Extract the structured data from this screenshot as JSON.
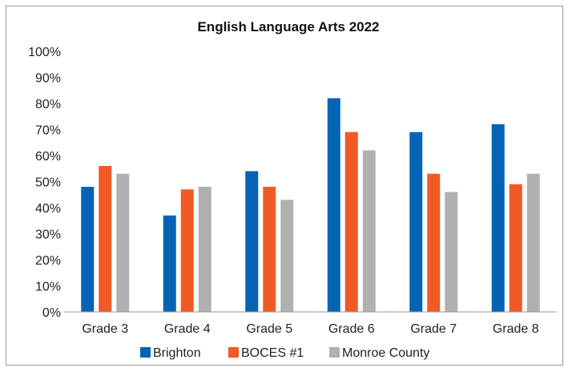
{
  "chart_data": {
    "type": "bar",
    "title": "English Language Arts 2022",
    "xlabel": "",
    "ylabel": "",
    "categories": [
      "Grade 3",
      "Grade 4",
      "Grade 5",
      "Grade 6",
      "Grade 7",
      "Grade 8"
    ],
    "series": [
      {
        "name": "Brighton",
        "color": "#0563b5",
        "values": [
          48,
          37,
          54,
          82,
          69,
          72
        ]
      },
      {
        "name": "BOCES #1",
        "color": "#f15a24",
        "values": [
          56,
          47,
          48,
          69,
          53,
          49
        ]
      },
      {
        "name": "Monroe County",
        "color": "#b0b0b0",
        "values": [
          53,
          48,
          43,
          62,
          46,
          53
        ]
      }
    ],
    "ylim": [
      0,
      100
    ],
    "yticks": [
      "0%",
      "10%",
      "20%",
      "30%",
      "40%",
      "50%",
      "60%",
      "70%",
      "80%",
      "90%",
      "100%"
    ],
    "grid": false,
    "legend_position": "bottom"
  }
}
